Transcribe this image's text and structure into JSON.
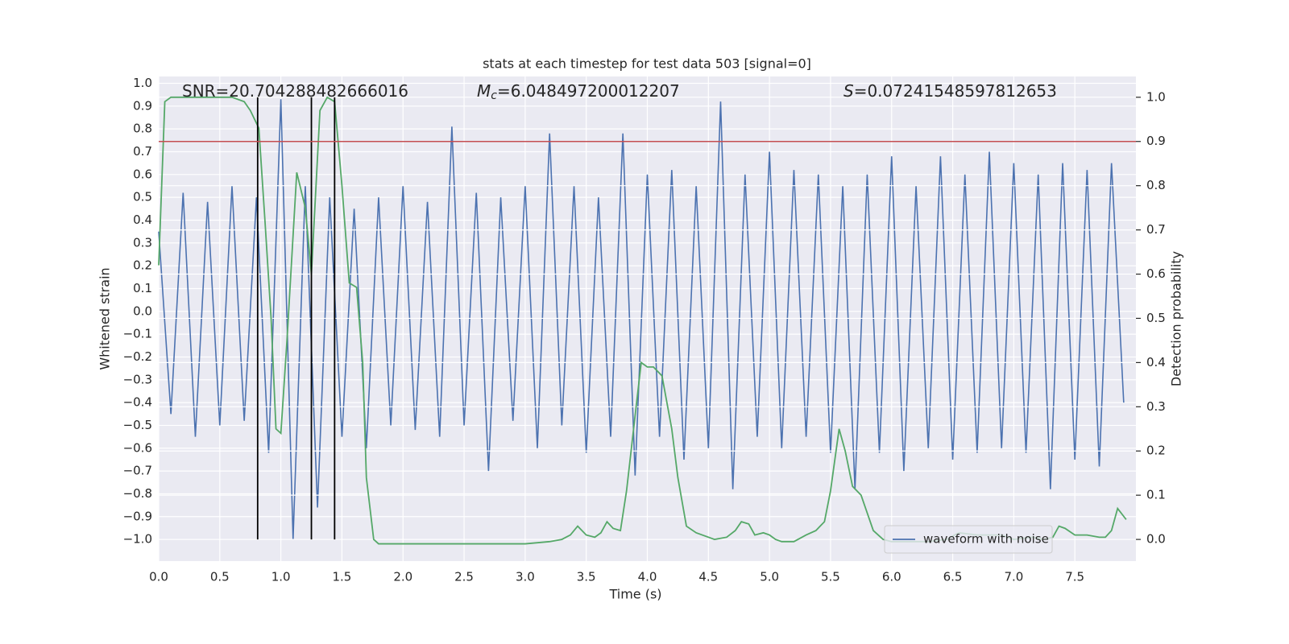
{
  "chart_data": {
    "type": "line",
    "title": "stats at each timestep for test data 503 [signal=0]",
    "x_label": "Time (s)",
    "y_label": "Whitened strain",
    "y2_label": "Detection probability",
    "grid": true,
    "legend": "lower right",
    "xlim": [
      0,
      8.0
    ],
    "ylim": [
      -1.095,
      1.03
    ],
    "y2lim": [
      -0.049,
      1.047
    ],
    "xticks": [
      {
        "value": 0,
        "label": "0.0"
      },
      {
        "value": 0.5,
        "label": "0.5"
      },
      {
        "value": 1,
        "label": "1.0"
      },
      {
        "value": 1.5,
        "label": "1.5"
      },
      {
        "value": 2,
        "label": "2.0"
      },
      {
        "value": 2.5,
        "label": "2.5"
      },
      {
        "value": 3,
        "label": "3.0"
      },
      {
        "value": 3.5,
        "label": "3.5"
      },
      {
        "value": 4,
        "label": "4.0"
      },
      {
        "value": 4.5,
        "label": "4.5"
      },
      {
        "value": 5,
        "label": "5.0"
      },
      {
        "value": 5.5,
        "label": "5.5"
      },
      {
        "value": 6,
        "label": "6.0"
      },
      {
        "value": 6.5,
        "label": "6.5"
      },
      {
        "value": 7,
        "label": "7.0"
      },
      {
        "value": 7.5,
        "label": "7.5"
      }
    ],
    "yticks": [
      {
        "value": -1,
        "label": "−1.0"
      },
      {
        "value": -0.9,
        "label": "−0.9"
      },
      {
        "value": -0.8,
        "label": "−0.8"
      },
      {
        "value": -0.7,
        "label": "−0.7"
      },
      {
        "value": -0.6,
        "label": "−0.6"
      },
      {
        "value": -0.5,
        "label": "−0.5"
      },
      {
        "value": -0.4,
        "label": "−0.4"
      },
      {
        "value": -0.3,
        "label": "−0.3"
      },
      {
        "value": -0.2,
        "label": "−0.2"
      },
      {
        "value": -0.1,
        "label": "−0.1"
      },
      {
        "value": 0,
        "label": "0.0"
      },
      {
        "value": 0.1,
        "label": "0.1"
      },
      {
        "value": 0.2,
        "label": "0.2"
      },
      {
        "value": 0.3,
        "label": "0.3"
      },
      {
        "value": 0.4,
        "label": "0.4"
      },
      {
        "value": 0.5,
        "label": "0.5"
      },
      {
        "value": 0.6,
        "label": "0.6"
      },
      {
        "value": 0.7,
        "label": "0.7"
      },
      {
        "value": 0.8,
        "label": "0.8"
      },
      {
        "value": 0.9,
        "label": "0.9"
      },
      {
        "value": 1,
        "label": "1.0"
      }
    ],
    "y2ticks": [
      {
        "value": 0,
        "label": "0.0"
      },
      {
        "value": 0.1,
        "label": "0.1"
      },
      {
        "value": 0.2,
        "label": "0.2"
      },
      {
        "value": 0.3,
        "label": "0.3"
      },
      {
        "value": 0.4,
        "label": "0.4"
      },
      {
        "value": 0.5,
        "label": "0.5"
      },
      {
        "value": 0.6,
        "label": "0.6"
      },
      {
        "value": 0.7,
        "label": "0.7"
      },
      {
        "value": 0.8,
        "label": "0.8"
      },
      {
        "value": 0.9,
        "label": "0.9"
      },
      {
        "value": 1,
        "label": "1.0"
      }
    ],
    "series": [
      {
        "name": "waveform with noise",
        "color": "#4c72b0",
        "x": [
          0,
          0.1,
          0.2,
          0.3,
          0.4,
          0.5,
          0.6,
          0.7,
          0.8,
          0.9,
          1,
          1.1,
          1.2,
          1.3,
          1.4,
          1.5,
          1.6,
          1.7,
          1.8,
          1.9,
          2,
          2.1,
          2.2,
          2.3,
          2.4,
          2.5,
          2.6,
          2.7,
          2.8,
          2.9,
          3,
          3.1,
          3.2,
          3.3,
          3.4,
          3.5,
          3.6,
          3.7,
          3.8,
          3.9,
          4,
          4.1,
          4.2,
          4.3,
          4.4,
          4.5,
          4.6,
          4.7,
          4.8,
          4.9,
          5,
          5.1,
          5.2,
          5.3,
          5.4,
          5.5,
          5.6,
          5.7,
          5.8,
          5.9,
          6,
          6.1,
          6.2,
          6.3,
          6.4,
          6.5,
          6.6,
          6.7,
          6.8,
          6.9,
          7,
          7.1,
          7.2,
          7.3,
          7.4,
          7.5,
          7.6,
          7.7,
          7.8,
          7.9
        ],
        "values": [
          0.35,
          -0.45,
          0.52,
          -0.55,
          0.48,
          -0.5,
          0.55,
          -0.48,
          0.5,
          -0.62,
          0.93,
          -1.0,
          0.55,
          -0.86,
          0.5,
          -0.55,
          0.45,
          -0.6,
          0.5,
          -0.5,
          0.55,
          -0.52,
          0.48,
          -0.55,
          0.81,
          -0.5,
          0.52,
          -0.7,
          0.5,
          -0.48,
          0.55,
          -0.6,
          0.78,
          -0.5,
          0.55,
          -0.62,
          0.5,
          -0.55,
          0.78,
          -0.72,
          0.6,
          -0.55,
          0.62,
          -0.65,
          0.55,
          -0.6,
          0.92,
          -0.78,
          0.6,
          -0.55,
          0.7,
          -0.6,
          0.62,
          -0.55,
          0.6,
          -0.62,
          0.55,
          -0.78,
          0.6,
          -0.62,
          0.68,
          -0.7,
          0.55,
          -0.6,
          0.68,
          -0.65,
          0.6,
          -0.62,
          0.7,
          -0.6,
          0.65,
          -0.62,
          0.6,
          -0.78,
          0.65,
          -0.65,
          0.62,
          -0.68,
          0.65,
          -0.4
        ]
      },
      {
        "color": "#55a868",
        "axis": "y2",
        "x": [
          0,
          0.05,
          0.1,
          0.6,
          0.7,
          0.75,
          0.82,
          0.87,
          0.92,
          0.96,
          1,
          1.05,
          1.13,
          1.2,
          1.25,
          1.32,
          1.38,
          1.44,
          1.5,
          1.56,
          1.62,
          1.67,
          1.7,
          1.76,
          1.8,
          2.2,
          2.5,
          3,
          3.2,
          3.3,
          3.37,
          3.43,
          3.5,
          3.57,
          3.62,
          3.67,
          3.72,
          3.78,
          3.83,
          3.9,
          3.95,
          4,
          4.05,
          4.12,
          4.2,
          4.25,
          4.32,
          4.4,
          4.55,
          4.65,
          4.72,
          4.77,
          4.83,
          4.88,
          4.95,
          5,
          5.05,
          5.1,
          5.2,
          5.3,
          5.38,
          5.45,
          5.5,
          5.57,
          5.62,
          5.68,
          5.75,
          5.85,
          5.93,
          6,
          6.3,
          6.45,
          6.55,
          6.7,
          6.9,
          7,
          7.15,
          7.25,
          7.32,
          7.37,
          7.42,
          7.5,
          7.6,
          7.7,
          7.75,
          7.8,
          7.85,
          7.92
        ],
        "values": [
          0.62,
          0.99,
          1.0,
          1.0,
          0.99,
          0.97,
          0.93,
          0.72,
          0.5,
          0.25,
          0.24,
          0.45,
          0.83,
          0.75,
          0.6,
          0.97,
          1.0,
          0.99,
          0.8,
          0.58,
          0.57,
          0.4,
          0.14,
          0.0,
          -0.01,
          -0.01,
          -0.01,
          -0.01,
          -0.005,
          0.0,
          0.01,
          0.03,
          0.01,
          0.005,
          0.015,
          0.04,
          0.025,
          0.02,
          0.11,
          0.28,
          0.4,
          0.39,
          0.39,
          0.37,
          0.25,
          0.14,
          0.03,
          0.015,
          0.0,
          0.005,
          0.02,
          0.04,
          0.035,
          0.01,
          0.015,
          0.01,
          0.0,
          -0.005,
          -0.005,
          0.01,
          0.02,
          0.04,
          0.11,
          0.25,
          0.2,
          0.12,
          0.1,
          0.02,
          0.0,
          -0.005,
          -0.005,
          0.0,
          0.015,
          0.01,
          0.01,
          0.0,
          0.005,
          0.0,
          0.005,
          0.03,
          0.025,
          0.01,
          0.01,
          0.005,
          0.005,
          0.02,
          0.07,
          0.045
        ]
      }
    ],
    "vlines": {
      "color": "#000000",
      "x": [
        0.81,
        1.25,
        1.44
      ],
      "y2": [
        0,
        1
      ]
    },
    "hline": {
      "color": "#c44e52",
      "axis": "y2",
      "value": 0.9
    },
    "annotations": [
      {
        "text": "SNR=20.704288482666016"
      },
      {
        "symbol": "M",
        "subscript": "c",
        "text": "=6.048497200012207"
      },
      {
        "symbol": "S",
        "text": "=0.07241548597812653"
      }
    ]
  }
}
